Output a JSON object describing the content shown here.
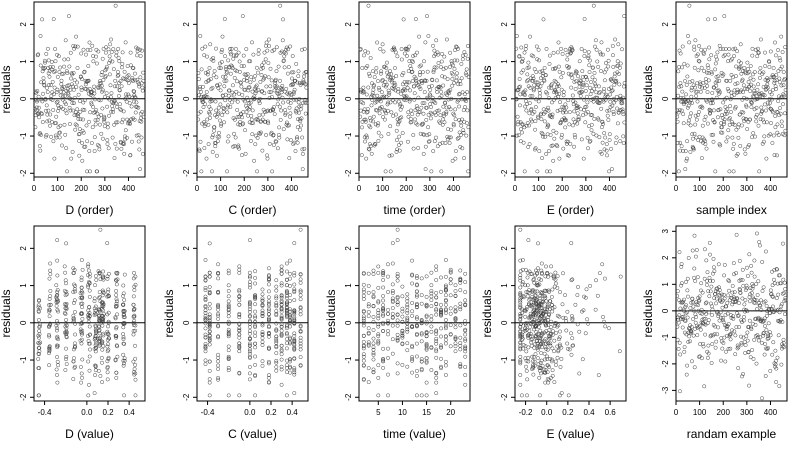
{
  "chart_data": [
    {
      "type": "scatter",
      "xlabel": "D (order)",
      "ylabel": "residuals",
      "xticks": [
        "0",
        "100",
        "200",
        "300",
        "400"
      ],
      "yticks": [
        "-2",
        "-1",
        "0",
        "1",
        "2"
      ],
      "xlim": [
        0,
        470
      ],
      "ylim": [
        -2.1,
        2.6
      ],
      "reference_line_y": 0,
      "points_note": "~470 residuals vs observation order, spread roughly -2 to 2.5"
    },
    {
      "type": "scatter",
      "xlabel": "C (order)",
      "ylabel": "residuals",
      "xticks": [
        "0",
        "100",
        "200",
        "300",
        "400"
      ],
      "yticks": [
        "-2",
        "-1",
        "0",
        "1",
        "2"
      ],
      "xlim": [
        0,
        470
      ],
      "ylim": [
        -2.1,
        2.6
      ],
      "reference_line_y": 0
    },
    {
      "type": "scatter",
      "xlabel": "time (order)",
      "ylabel": "residuals",
      "xticks": [
        "0",
        "100",
        "200",
        "300",
        "400"
      ],
      "yticks": [
        "-2",
        "-1",
        "0",
        "1",
        "2"
      ],
      "xlim": [
        0,
        470
      ],
      "ylim": [
        -2.1,
        2.6
      ],
      "reference_line_y": 0
    },
    {
      "type": "scatter",
      "xlabel": "E (order)",
      "ylabel": "residuals",
      "xticks": [
        "0",
        "100",
        "200",
        "300",
        "400"
      ],
      "yticks": [
        "-2",
        "-1",
        "0",
        "1",
        "2"
      ],
      "xlim": [
        0,
        470
      ],
      "ylim": [
        -2.1,
        2.6
      ],
      "reference_line_y": 0
    },
    {
      "type": "scatter",
      "xlabel": "sample index",
      "ylabel": "residuals",
      "xticks": [
        "0",
        "100",
        "200",
        "300",
        "400"
      ],
      "yticks": [
        "-2",
        "-1",
        "0",
        "1",
        "2"
      ],
      "xlim": [
        0,
        470
      ],
      "ylim": [
        -2.1,
        2.6
      ],
      "reference_line_y": 0
    },
    {
      "type": "scatter",
      "xlabel": "D (value)",
      "ylabel": "residuals",
      "xticks": [
        "-0.4",
        "0.0",
        "0.2",
        "0.4"
      ],
      "xtick_values": [
        -0.4,
        0.0,
        0.2,
        0.4
      ],
      "yticks": [
        "-2",
        "-1",
        "0",
        "1",
        "2"
      ],
      "xlim": [
        -0.5,
        0.55
      ],
      "ylim": [
        -2.1,
        2.6
      ],
      "reference_line_y": 0
    },
    {
      "type": "scatter",
      "xlabel": "C (value)",
      "ylabel": "residuals",
      "xticks": [
        "-0.4",
        "0.0",
        "0.2",
        "0.4"
      ],
      "xtick_values": [
        -0.4,
        0.0,
        0.2,
        0.4
      ],
      "yticks": [
        "-2",
        "-1",
        "0",
        "1",
        "2"
      ],
      "xlim": [
        -0.5,
        0.55
      ],
      "ylim": [
        -2.1,
        2.6
      ],
      "reference_line_y": 0
    },
    {
      "type": "scatter",
      "xlabel": "time (value)",
      "ylabel": "residuals",
      "xticks": [
        "5",
        "10",
        "15",
        "20"
      ],
      "xtick_values": [
        5,
        10,
        15,
        20
      ],
      "yticks": [
        "-2",
        "-1",
        "0",
        "1",
        "2"
      ],
      "xlim": [
        1,
        24
      ],
      "ylim": [
        -2.1,
        2.6
      ],
      "reference_line_y": 0
    },
    {
      "type": "scatter",
      "xlabel": "E (value)",
      "ylabel": "residuals",
      "xticks": [
        "-0.2",
        "0.0",
        "0.2",
        "0.4",
        "0.6"
      ],
      "xtick_values": [
        -0.2,
        0.0,
        0.2,
        0.4,
        0.6
      ],
      "yticks": [
        "-2",
        "-1",
        "0",
        "1",
        "2"
      ],
      "xlim": [
        -0.3,
        0.75
      ],
      "ylim": [
        -2.1,
        2.6
      ],
      "reference_line_y": 0
    },
    {
      "type": "scatter",
      "xlabel": "randam example",
      "ylabel": "residuals",
      "xticks": [
        "0",
        "100",
        "200",
        "300",
        "400"
      ],
      "yticks": [
        "-3",
        "-2",
        "-1",
        "0",
        "1",
        "2",
        "3"
      ],
      "xlim": [
        0,
        470
      ],
      "ylim": [
        -3.4,
        3.2
      ],
      "reference_line_y": 0
    }
  ]
}
